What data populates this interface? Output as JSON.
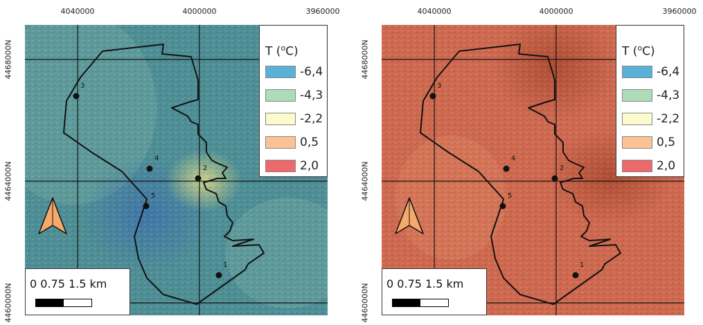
{
  "panels": [
    {
      "id": "left",
      "theme": "bluegreen",
      "coords_x": [
        "4040000",
        "4000000",
        "3960000"
      ],
      "coords_y": [
        "4468000N",
        "4464000N",
        "4460000N"
      ],
      "legend": {
        "title": "T (",
        "title_sup": "o",
        "title_unit": "C)",
        "items": [
          {
            "label": "-6,4",
            "color": "#5ab1d7"
          },
          {
            "label": "-4,3",
            "color": "#aedbb8"
          },
          {
            "label": "-2,2",
            "color": "#fbfbcc"
          },
          {
            "label": "0,5",
            "color": "#fbc394"
          },
          {
            "label": "2,0",
            "color": "#ec6a6e"
          }
        ]
      },
      "points": [
        {
          "label": "1"
        },
        {
          "label": "2"
        },
        {
          "label": "3"
        },
        {
          "label": "4"
        },
        {
          "label": "5"
        }
      ],
      "scale": {
        "label": "0 0.75 1.5 km"
      }
    },
    {
      "id": "right",
      "theme": "red",
      "coords_x": [
        "4040000",
        "4000000",
        "3960000"
      ],
      "coords_y": [
        "4468000N",
        "4464000N",
        "4460000N"
      ],
      "legend": {
        "title": "T (",
        "title_sup": "o",
        "title_unit": "C)",
        "items": [
          {
            "label": "-6,4",
            "color": "#5ab1d7"
          },
          {
            "label": "-4,3",
            "color": "#aedbb8"
          },
          {
            "label": "-2,2",
            "color": "#fbfbcc"
          },
          {
            "label": "0,5",
            "color": "#fbc394"
          },
          {
            "label": "2,0",
            "color": "#ec6a6e"
          }
        ]
      },
      "points": [
        {
          "label": "1"
        },
        {
          "label": "2"
        },
        {
          "label": "3"
        },
        {
          "label": "4"
        },
        {
          "label": "5"
        }
      ],
      "scale": {
        "label": "0 0.75 1.5 km"
      }
    }
  ],
  "north_arrow": {
    "icon": "north-arrow-icon",
    "fill": "#f5a96b"
  },
  "boundary": {
    "color": "#111111"
  },
  "theme_colors": {
    "bluegreen_base": "#4f8f96",
    "bluegreen_light": "#7fb3a8",
    "blue_hotspot": "#3b6fb0",
    "yellow_hotspot": "#d9d98a",
    "red_base": "#cf6a50",
    "red_dark": "#a8472f"
  }
}
